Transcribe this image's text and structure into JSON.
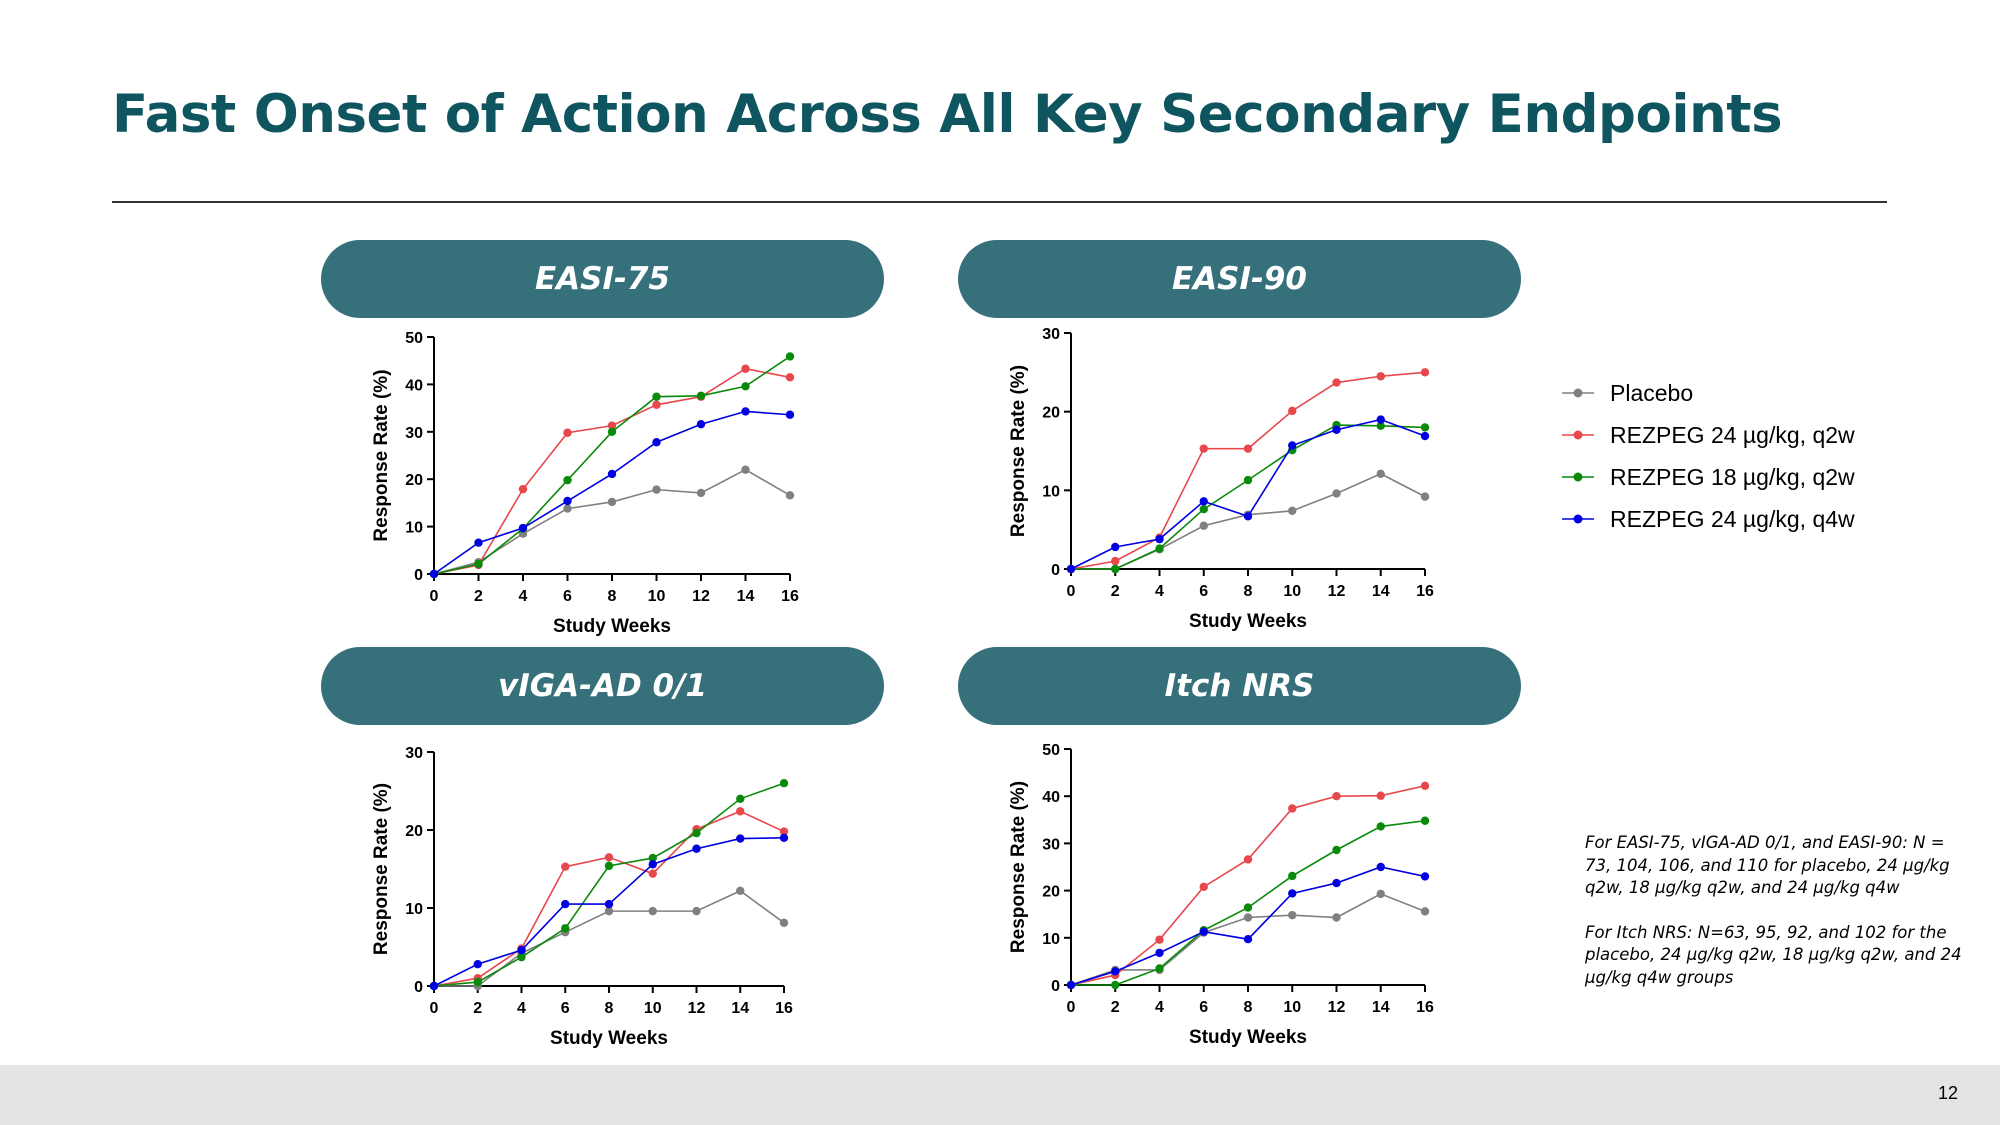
{
  "title": "Fast Onset of Action Across All Key Secondary Endpoints",
  "page_number": "12",
  "colors": {
    "title": "#0e5560",
    "pill": "#36707a",
    "placebo": "#808080",
    "rezpeg24_q2w": "#e8474c",
    "rezpeg18_q2w": "#0a8a0a",
    "rezpeg24_q4w": "#0000e0"
  },
  "legend": [
    {
      "name": "Placebo",
      "color": "#808080"
    },
    {
      "name": "REZPEG 24 µg/kg, q2w",
      "color": "#e8474c"
    },
    {
      "name": "REZPEG 18 µg/kg, q2w",
      "color": "#0a8a0a"
    },
    {
      "name": "REZPEG 24 µg/kg, q4w",
      "color": "#0000e0"
    }
  ],
  "notes": {
    "easi": "For EASI-75, vIGA-AD 0/1, and EASI-90: N = 73, 104, 106, and 110 for placebo, 24 µg/kg q2w, 18 µg/kg q2w, and 24 µg/kg q4w",
    "itch": "For Itch NRS: N=63, 95, 92, and 102 for the placebo, 24 µg/kg q2w, 18 µg/kg q2w, and 24 µg/kg q4w groups"
  },
  "chart_data": [
    {
      "type": "line",
      "title": "EASI-75",
      "xlabel": "Study Weeks",
      "ylabel": "Response Rate (%)",
      "x": [
        0,
        2,
        4,
        6,
        8,
        10,
        12,
        14,
        16
      ],
      "xticks": [
        0,
        2,
        4,
        6,
        8,
        10,
        12,
        14,
        16
      ],
      "yticks": [
        0,
        10,
        20,
        30,
        40,
        50
      ],
      "ylim": [
        0,
        50
      ],
      "series": [
        {
          "name": "Placebo",
          "color": "#808080",
          "values": [
            0,
            2.5,
            8.5,
            13.8,
            15.2,
            17.8,
            17.1,
            22.0,
            16.6
          ]
        },
        {
          "name": "REZPEG 24 µg/kg, q2w",
          "color": "#e8474c",
          "values": [
            0,
            1.9,
            17.9,
            29.8,
            31.3,
            35.7,
            37.4,
            43.3,
            41.5
          ]
        },
        {
          "name": "REZPEG 18 µg/kg, q2w",
          "color": "#0a8a0a",
          "values": [
            0,
            2.1,
            9.6,
            19.8,
            30.0,
            37.4,
            37.6,
            39.6,
            45.9
          ]
        },
        {
          "name": "REZPEG 24 µg/kg, q4w",
          "color": "#0000e0",
          "values": [
            0,
            6.6,
            9.7,
            15.4,
            21.1,
            27.8,
            31.6,
            34.3,
            33.6
          ]
        }
      ]
    },
    {
      "type": "line",
      "title": "EASI-90",
      "xlabel": "Study Weeks",
      "ylabel": "Response Rate (%)",
      "x": [
        0,
        2,
        4,
        6,
        8,
        10,
        12,
        14,
        16
      ],
      "xticks": [
        0,
        2,
        4,
        6,
        8,
        10,
        12,
        14,
        16
      ],
      "yticks": [
        0,
        10,
        20,
        30
      ],
      "ylim": [
        0,
        30
      ],
      "series": [
        {
          "name": "Placebo",
          "color": "#808080",
          "values": [
            0,
            0,
            2.5,
            5.5,
            6.9,
            7.4,
            9.6,
            12.1,
            9.2
          ]
        },
        {
          "name": "REZPEG 24 µg/kg, q2w",
          "color": "#e8474c",
          "values": [
            0,
            1.0,
            4.0,
            15.3,
            15.3,
            20.1,
            23.7,
            24.5,
            25.0
          ]
        },
        {
          "name": "REZPEG 18 µg/kg, q2w",
          "color": "#0a8a0a",
          "values": [
            0,
            0,
            2.6,
            7.6,
            11.3,
            15.1,
            18.3,
            18.2,
            18.0
          ]
        },
        {
          "name": "REZPEG 24 µg/kg, q4w",
          "color": "#0000e0",
          "values": [
            0,
            2.8,
            3.8,
            8.6,
            6.7,
            15.7,
            17.7,
            19.0,
            16.9
          ]
        }
      ]
    },
    {
      "type": "line",
      "title": "vIGA-AD 0/1",
      "xlabel": "Study Weeks",
      "ylabel": "Response Rate (%)",
      "x": [
        0,
        2,
        4,
        6,
        8,
        10,
        12,
        14,
        16
      ],
      "xticks": [
        0,
        2,
        4,
        6,
        8,
        10,
        12,
        14,
        16
      ],
      "yticks": [
        0,
        10,
        20,
        30
      ],
      "ylim": [
        0,
        30
      ],
      "series": [
        {
          "name": "Placebo",
          "color": "#808080",
          "values": [
            0,
            0,
            4.2,
            6.9,
            9.6,
            9.6,
            9.6,
            12.2,
            8.1
          ]
        },
        {
          "name": "REZPEG 24 µg/kg, q2w",
          "color": "#e8474c",
          "values": [
            0,
            1.0,
            4.8,
            15.3,
            16.5,
            14.4,
            20.1,
            22.4,
            19.8
          ]
        },
        {
          "name": "REZPEG 18 µg/kg, q2w",
          "color": "#0a8a0a",
          "values": [
            0,
            0.5,
            3.7,
            7.4,
            15.4,
            16.4,
            19.6,
            24.0,
            26.0
          ]
        },
        {
          "name": "REZPEG 24 µg/kg, q4w",
          "color": "#0000e0",
          "values": [
            0,
            2.8,
            4.6,
            10.5,
            10.5,
            15.6,
            17.6,
            18.9,
            19.0
          ]
        }
      ]
    },
    {
      "type": "line",
      "title": "Itch NRS",
      "xlabel": "Study Weeks",
      "ylabel": "Response Rate (%)",
      "x": [
        0,
        2,
        4,
        6,
        8,
        10,
        12,
        14,
        16
      ],
      "xticks": [
        0,
        2,
        4,
        6,
        8,
        10,
        12,
        14,
        16
      ],
      "yticks": [
        0,
        10,
        20,
        30,
        40,
        50
      ],
      "ylim": [
        0,
        50
      ],
      "series": [
        {
          "name": "Placebo",
          "color": "#808080",
          "values": [
            0,
            3.2,
            3.2,
            11.1,
            14.3,
            14.8,
            14.3,
            19.3,
            15.6
          ]
        },
        {
          "name": "REZPEG 24 µg/kg, q2w",
          "color": "#e8474c",
          "values": [
            0,
            2.1,
            9.6,
            20.8,
            26.6,
            37.4,
            40.0,
            40.1,
            42.2
          ]
        },
        {
          "name": "REZPEG 18 µg/kg, q2w",
          "color": "#0a8a0a",
          "values": [
            0,
            0,
            3.5,
            11.6,
            16.4,
            23.1,
            28.6,
            33.6,
            34.8
          ]
        },
        {
          "name": "REZPEG 24 µg/kg, q4w",
          "color": "#0000e0",
          "values": [
            0,
            2.9,
            6.8,
            11.3,
            9.7,
            19.4,
            21.6,
            25.0,
            23.0
          ]
        }
      ]
    }
  ]
}
